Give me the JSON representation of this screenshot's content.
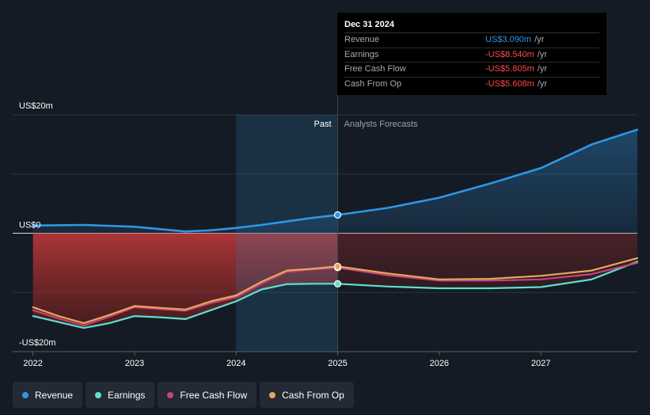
{
  "chart_data": {
    "type": "line",
    "ylabels": {
      "top": "US$20m",
      "zero": "US$0",
      "bottom": "-US$20m"
    },
    "ylim": [
      -20,
      20
    ],
    "xlim": [
      2021.8,
      2027.95
    ],
    "x_ticks": [
      {
        "value": 2022,
        "label": "2022"
      },
      {
        "value": 2023,
        "label": "2023"
      },
      {
        "value": 2024,
        "label": "2024"
      },
      {
        "value": 2025,
        "label": "2025"
      },
      {
        "value": 2026,
        "label": "2026"
      },
      {
        "value": 2027,
        "label": "2027"
      }
    ],
    "divider_x": 2025.0,
    "highlight_start": 2024.0,
    "past_label": "Past",
    "forecast_label": "Analysts Forecasts",
    "series": [
      {
        "name": "Revenue",
        "color": "#2f96e6",
        "x": [
          2022.0,
          2022.5,
          2023.0,
          2023.25,
          2023.5,
          2023.75,
          2024.0,
          2024.25,
          2024.5,
          2024.75,
          2025.0,
          2025.5,
          2026.0,
          2026.5,
          2027.0,
          2027.5,
          2027.95
        ],
        "values": [
          1.3,
          1.4,
          1.1,
          0.7,
          0.3,
          0.5,
          0.9,
          1.4,
          2.0,
          2.6,
          3.09,
          4.3,
          6.0,
          8.4,
          11.0,
          15.0,
          17.5
        ]
      },
      {
        "name": "Earnings",
        "color": "#5ee0cf",
        "x": [
          2022.0,
          2022.25,
          2022.5,
          2022.75,
          2023.0,
          2023.25,
          2023.5,
          2023.75,
          2024.0,
          2024.25,
          2024.5,
          2024.75,
          2025.0,
          2025.5,
          2026.0,
          2026.5,
          2027.0,
          2027.5,
          2027.95
        ],
        "values": [
          -14.0,
          -15.0,
          -16.0,
          -15.2,
          -14.0,
          -14.2,
          -14.5,
          -13.0,
          -11.5,
          -9.5,
          -8.6,
          -8.54,
          -8.54,
          -9.0,
          -9.3,
          -9.3,
          -9.1,
          -7.8,
          -4.8
        ]
      },
      {
        "name": "Free Cash Flow",
        "color": "#c2457c",
        "x": [
          2022.0,
          2022.25,
          2022.5,
          2022.75,
          2023.0,
          2023.25,
          2023.5,
          2023.75,
          2024.0,
          2024.25,
          2024.5,
          2024.75,
          2025.0,
          2025.5,
          2026.0,
          2026.5,
          2027.0,
          2027.5,
          2027.95
        ],
        "values": [
          -13.0,
          -14.4,
          -15.6,
          -14.1,
          -12.5,
          -12.8,
          -13.1,
          -11.8,
          -10.8,
          -8.5,
          -6.5,
          -6.1,
          -5.805,
          -7.1,
          -8.0,
          -8.0,
          -7.8,
          -6.9,
          -5.0
        ]
      },
      {
        "name": "Cash From Op",
        "color": "#e9a659",
        "x": [
          2022.0,
          2022.25,
          2022.5,
          2022.75,
          2023.0,
          2023.25,
          2023.5,
          2023.75,
          2024.0,
          2024.25,
          2024.5,
          2024.75,
          2025.0,
          2025.5,
          2026.0,
          2026.5,
          2027.0,
          2027.5,
          2027.95
        ],
        "values": [
          -12.5,
          -14.0,
          -15.2,
          -13.8,
          -12.3,
          -12.6,
          -12.9,
          -11.5,
          -10.5,
          -8.2,
          -6.3,
          -6.0,
          -5.608,
          -6.8,
          -7.8,
          -7.7,
          -7.2,
          -6.3,
          -4.2
        ]
      }
    ]
  },
  "tooltip": {
    "date": "Dec 31 2024",
    "rows": [
      {
        "label": "Revenue",
        "value": "US$3.090m",
        "unit": "/yr",
        "color": "#2f96e6"
      },
      {
        "label": "Earnings",
        "value": "-US$8.540m",
        "unit": "/yr",
        "color": "#ff4b4b"
      },
      {
        "label": "Free Cash Flow",
        "value": "-US$5.805m",
        "unit": "/yr",
        "color": "#ff4b4b"
      },
      {
        "label": "Cash From Op",
        "value": "-US$5.608m",
        "unit": "/yr",
        "color": "#ff4b4b"
      }
    ]
  },
  "legend": [
    {
      "label": "Revenue",
      "color": "#2f96e6"
    },
    {
      "label": "Earnings",
      "color": "#5ee0cf"
    },
    {
      "label": "Free Cash Flow",
      "color": "#c2457c"
    },
    {
      "label": "Cash From Op",
      "color": "#e9a659"
    }
  ]
}
